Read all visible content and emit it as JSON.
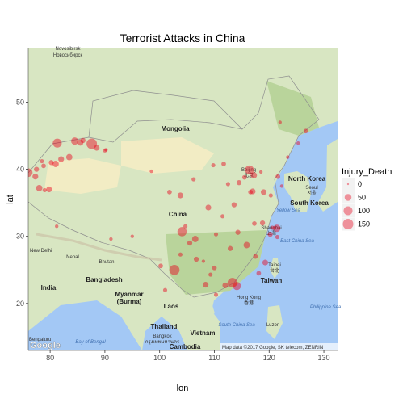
{
  "chart_data": {
    "type": "scatter",
    "title": "Terrorist Attacks in China",
    "xlabel": "lon",
    "ylabel": "lat",
    "xlim": [
      76,
      132.5
    ],
    "ylim": [
      13,
      58
    ],
    "x_ticks": [
      80,
      90,
      100,
      110,
      120,
      130
    ],
    "y_ticks": [
      20,
      30,
      40,
      50
    ],
    "grid": false,
    "background": "basemap",
    "point_color": "#e8001a",
    "legend": {
      "title": "Injury_Death",
      "placement": "right",
      "entries": [
        {
          "label": "0",
          "value": 0
        },
        {
          "label": "50",
          "value": 50
        },
        {
          "label": "100",
          "value": 100
        },
        {
          "label": "150",
          "value": 150
        }
      ]
    },
    "points": [
      {
        "lon": 87.6,
        "lat": 43.8,
        "size": 150
      },
      {
        "lon": 81.3,
        "lat": 43.9,
        "size": 100
      },
      {
        "lon": 84.5,
        "lat": 44.2,
        "size": 60
      },
      {
        "lon": 85.5,
        "lat": 44.0,
        "size": 40
      },
      {
        "lon": 86.0,
        "lat": 44.3,
        "size": 20
      },
      {
        "lon": 88.5,
        "lat": 43.2,
        "size": 30
      },
      {
        "lon": 90.0,
        "lat": 42.8,
        "size": 10
      },
      {
        "lon": 90.2,
        "lat": 42.9,
        "size": 5
      },
      {
        "lon": 76.0,
        "lat": 39.5,
        "size": 90
      },
      {
        "lon": 77.3,
        "lat": 38.9,
        "size": 30
      },
      {
        "lon": 78.0,
        "lat": 37.2,
        "size": 40
      },
      {
        "lon": 77.5,
        "lat": 40.0,
        "size": 20
      },
      {
        "lon": 78.5,
        "lat": 41.2,
        "size": 10
      },
      {
        "lon": 78.8,
        "lat": 40.5,
        "size": 15
      },
      {
        "lon": 79.8,
        "lat": 37.0,
        "size": 30
      },
      {
        "lon": 80.2,
        "lat": 41.0,
        "size": 20
      },
      {
        "lon": 81.0,
        "lat": 40.8,
        "size": 40
      },
      {
        "lon": 82.0,
        "lat": 41.5,
        "size": 30
      },
      {
        "lon": 83.5,
        "lat": 41.8,
        "size": 40
      },
      {
        "lon": 79.0,
        "lat": 36.9,
        "size": 10
      },
      {
        "lon": 81.2,
        "lat": 31.5,
        "size": 5
      },
      {
        "lon": 91.1,
        "lat": 29.6,
        "size": 5
      },
      {
        "lon": 116.4,
        "lat": 39.9,
        "size": 100
      },
      {
        "lon": 117.2,
        "lat": 39.1,
        "size": 40
      },
      {
        "lon": 115.5,
        "lat": 38.8,
        "size": 15
      },
      {
        "lon": 114.5,
        "lat": 38.0,
        "size": 20
      },
      {
        "lon": 112.5,
        "lat": 37.8,
        "size": 10
      },
      {
        "lon": 113.6,
        "lat": 34.7,
        "size": 20
      },
      {
        "lon": 116.6,
        "lat": 36.6,
        "size": 15
      },
      {
        "lon": 117.0,
        "lat": 36.7,
        "size": 30
      },
      {
        "lon": 119.0,
        "lat": 36.6,
        "size": 30
      },
      {
        "lon": 120.3,
        "lat": 36.1,
        "size": 10
      },
      {
        "lon": 122.3,
        "lat": 37.5,
        "size": 5
      },
      {
        "lon": 121.6,
        "lat": 38.9,
        "size": 15
      },
      {
        "lon": 123.4,
        "lat": 41.8,
        "size": 5
      },
      {
        "lon": 118.5,
        "lat": 39.6,
        "size": 5
      },
      {
        "lon": 122.0,
        "lat": 47.0,
        "size": 5
      },
      {
        "lon": 126.7,
        "lat": 45.7,
        "size": 15
      },
      {
        "lon": 125.3,
        "lat": 43.9,
        "size": 5
      },
      {
        "lon": 121.4,
        "lat": 31.2,
        "size": 60
      },
      {
        "lon": 120.2,
        "lat": 30.3,
        "size": 20
      },
      {
        "lon": 118.8,
        "lat": 32.0,
        "size": 20
      },
      {
        "lon": 117.3,
        "lat": 31.9,
        "size": 15
      },
      {
        "lon": 120.6,
        "lat": 31.3,
        "size": 10
      },
      {
        "lon": 121.5,
        "lat": 29.9,
        "size": 10
      },
      {
        "lon": 114.3,
        "lat": 30.6,
        "size": 20
      },
      {
        "lon": 112.9,
        "lat": 28.2,
        "size": 20
      },
      {
        "lon": 115.9,
        "lat": 28.7,
        "size": 40
      },
      {
        "lon": 117.5,
        "lat": 27.0,
        "size": 15
      },
      {
        "lon": 119.3,
        "lat": 26.1,
        "size": 30
      },
      {
        "lon": 118.1,
        "lat": 24.5,
        "size": 15
      },
      {
        "lon": 113.3,
        "lat": 23.1,
        "size": 120
      },
      {
        "lon": 114.1,
        "lat": 22.6,
        "size": 80
      },
      {
        "lon": 112.0,
        "lat": 22.7,
        "size": 30
      },
      {
        "lon": 110.3,
        "lat": 21.3,
        "size": 10
      },
      {
        "lon": 108.4,
        "lat": 22.8,
        "size": 30
      },
      {
        "lon": 110.0,
        "lat": 25.3,
        "size": 15
      },
      {
        "lon": 109.3,
        "lat": 24.3,
        "size": 10
      },
      {
        "lon": 106.7,
        "lat": 26.6,
        "size": 20
      },
      {
        "lon": 108.0,
        "lat": 26.3,
        "size": 5
      },
      {
        "lon": 102.7,
        "lat": 25.0,
        "size": 140
      },
      {
        "lon": 100.2,
        "lat": 25.6,
        "size": 15
      },
      {
        "lon": 103.8,
        "lat": 27.3,
        "size": 10
      },
      {
        "lon": 101.0,
        "lat": 22.0,
        "size": 10
      },
      {
        "lon": 104.1,
        "lat": 30.7,
        "size": 110
      },
      {
        "lon": 106.5,
        "lat": 29.6,
        "size": 40
      },
      {
        "lon": 105.5,
        "lat": 29.0,
        "size": 20
      },
      {
        "lon": 104.7,
        "lat": 31.5,
        "size": 10
      },
      {
        "lon": 108.9,
        "lat": 34.3,
        "size": 30
      },
      {
        "lon": 111.5,
        "lat": 33.0,
        "size": 10
      },
      {
        "lon": 110.3,
        "lat": 30.3,
        "size": 10
      },
      {
        "lon": 103.8,
        "lat": 36.1,
        "size": 30
      },
      {
        "lon": 101.8,
        "lat": 36.6,
        "size": 15
      },
      {
        "lon": 106.2,
        "lat": 38.5,
        "size": 10
      },
      {
        "lon": 111.7,
        "lat": 40.8,
        "size": 15
      },
      {
        "lon": 109.8,
        "lat": 40.6,
        "size": 10
      },
      {
        "lon": 98.5,
        "lat": 39.7,
        "size": 5
      },
      {
        "lon": 95.0,
        "lat": 30.0,
        "size": 5
      }
    ]
  },
  "map_labels": {
    "mongolia": "Mongolia",
    "china": "China",
    "beijing": "Beijing",
    "beijing_cn": "北京",
    "north_korea": "North Korea",
    "seoul": "Seoul",
    "seoul_kr": "서울",
    "south_korea": "South Korea",
    "yellow_sea": "Yellow Sea",
    "shanghai": "Shanghai",
    "shanghai_cn": "上海",
    "east_china_sea": "East China Sea",
    "taipei": "Taipei",
    "taipei_cn": "台北",
    "taiwan": "Taiwan",
    "hong_kong": "Hong Kong",
    "hong_kong_cn": "香港",
    "south_china_sea": "South China Sea",
    "philippine_sea": "Philippine Sea",
    "luzon": "Luzon",
    "laos": "Laos",
    "thailand": "Thailand",
    "bangkok": "Bangkok",
    "bangkok_th": "กรุงเทพมหานคร",
    "vietnam": "Vietnam",
    "cambodia": "Cambodia",
    "myanmar": "Myanmar",
    "burma": "(Burma)",
    "bangladesh": "Bangladesh",
    "bhutan": "Bhutan",
    "nepal": "Nepal",
    "new_delhi": "New Delhi",
    "india": "India",
    "bay_of_bengal": "Bay of Bengal",
    "bengaluru": "Bengaluru",
    "novosibirsk": "Novosibirsk",
    "novosibirsk_ru": "Новосибирск",
    "attribution": "Map data ©2017 Google, SK telecom, ZENRIN",
    "google": "Google"
  },
  "colors": {
    "water": "#a3c8f5",
    "land": "#d8e6c2",
    "desert": "#f2ecc4",
    "forest": "#b9d49b",
    "point": "#e8001a"
  }
}
